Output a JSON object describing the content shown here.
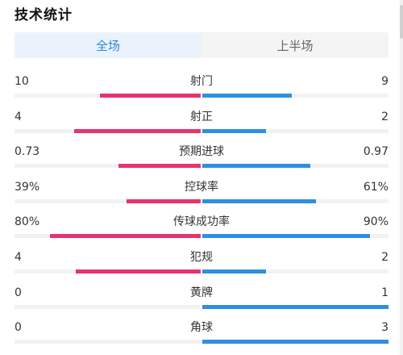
{
  "title": "技术统计",
  "tabs": [
    {
      "label": "全场",
      "active": true
    },
    {
      "label": "上半场",
      "active": false
    }
  ],
  "colors": {
    "home": "#e8336b",
    "away": "#2f8fe0",
    "active_tab_text": "#2f86d6"
  },
  "stats": [
    {
      "label": "射门",
      "left": "10",
      "right": "9",
      "left_share": 0.54,
      "right_share": 0.48
    },
    {
      "label": "射正",
      "left": "4",
      "right": "2",
      "left_share": 0.68,
      "right_share": 0.34
    },
    {
      "label": "预期进球",
      "left": "0.73",
      "right": "0.97",
      "left_share": 0.44,
      "right_share": 0.58
    },
    {
      "label": "控球率",
      "left": "39%",
      "right": "61%",
      "left_share": 0.4,
      "right_share": 0.61
    },
    {
      "label": "传球成功率",
      "left": "80%",
      "right": "90%",
      "left_share": 0.81,
      "right_share": 0.9
    },
    {
      "label": "犯规",
      "left": "4",
      "right": "2",
      "left_share": 0.67,
      "right_share": 0.34
    },
    {
      "label": "黄牌",
      "left": "0",
      "right": "1",
      "left_share": 0.0,
      "right_share": 1.0
    },
    {
      "label": "角球",
      "left": "0",
      "right": "3",
      "left_share": 0.0,
      "right_share": 1.0
    }
  ]
}
